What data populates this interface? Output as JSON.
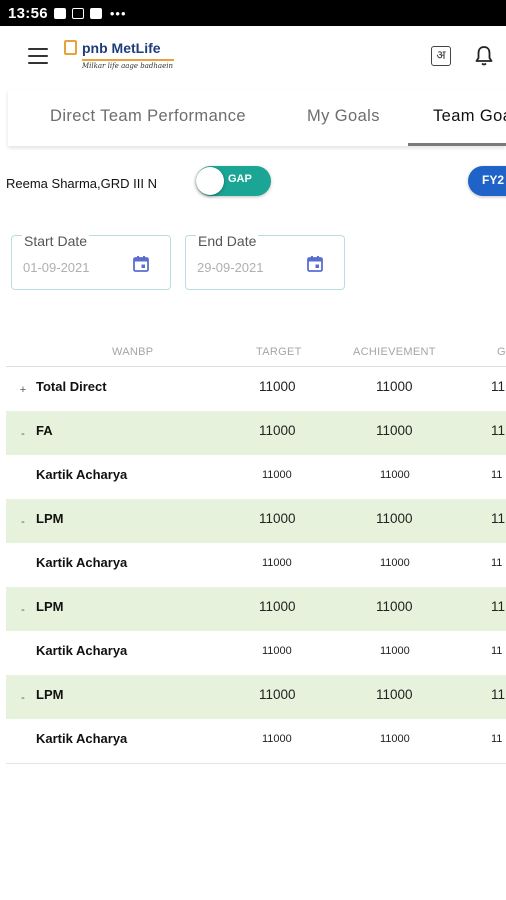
{
  "status_bar": {
    "time": "13:56",
    "overflow": "•••"
  },
  "header": {
    "logo_brand": "pnb MetLife",
    "logo_tagline": "Milkar life aage badhaein",
    "language_icon_text": "अ"
  },
  "tabs": [
    {
      "label": "Direct Team Performance"
    },
    {
      "label": "My Goals"
    },
    {
      "label": "Team Goals"
    }
  ],
  "filters": {
    "person": "Reema Sharma,GRD III N",
    "toggle_label": "GAP",
    "fy_label": "FY2",
    "start_date": {
      "label": "Start Date",
      "value": "01-09-2021"
    },
    "end_date": {
      "label": "End Date",
      "value": "29-09-2021"
    }
  },
  "table": {
    "columns": [
      "WANBP",
      "TARGET",
      "ACHIEVEMENT",
      "G"
    ],
    "rows": [
      {
        "type": "total",
        "expander": "+",
        "name": "Total Direct",
        "target": "11000",
        "achievement": "11000",
        "gap": "11"
      },
      {
        "type": "group",
        "expander": "-",
        "name": "FA",
        "target": "11000",
        "achievement": "11000",
        "gap": "11"
      },
      {
        "type": "sub",
        "expander": "",
        "name": "Kartik Acharya",
        "target": "11000",
        "achievement": "11000",
        "gap": "11"
      },
      {
        "type": "group",
        "expander": "-",
        "name": "LPM",
        "target": "11000",
        "achievement": "11000",
        "gap": "11"
      },
      {
        "type": "sub",
        "expander": "",
        "name": "Kartik Acharya",
        "target": "11000",
        "achievement": "11000",
        "gap": "11"
      },
      {
        "type": "group",
        "expander": "-",
        "name": "LPM",
        "target": "11000",
        "achievement": "11000",
        "gap": "11"
      },
      {
        "type": "sub",
        "expander": "",
        "name": "Kartik Acharya",
        "target": "11000",
        "achievement": "11000",
        "gap": "11"
      },
      {
        "type": "group",
        "expander": "-",
        "name": "LPM",
        "target": "11000",
        "achievement": "11000",
        "gap": "11"
      },
      {
        "type": "sub",
        "expander": "",
        "name": "Kartik Acharya",
        "target": "11000",
        "achievement": "11000",
        "gap": "11"
      }
    ]
  }
}
